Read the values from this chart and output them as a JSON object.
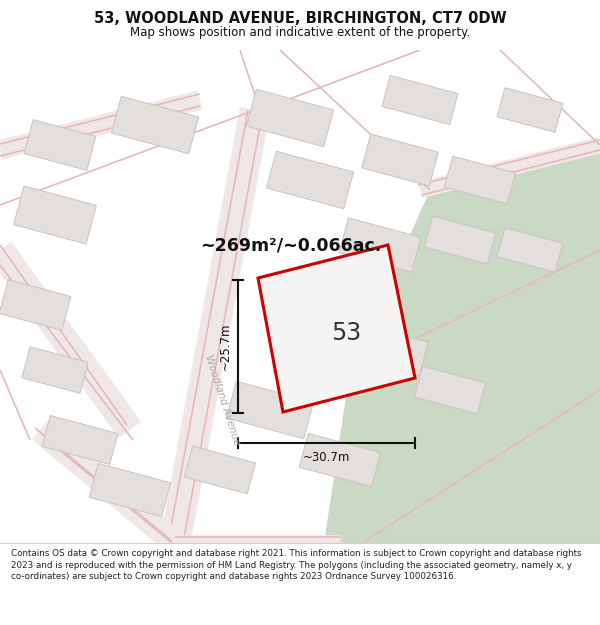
{
  "title": "53, WOODLAND AVENUE, BIRCHINGTON, CT7 0DW",
  "subtitle": "Map shows position and indicative extent of the property.",
  "footer": "Contains OS data © Crown copyright and database right 2021. This information is subject to Crown copyright and database rights 2023 and is reproduced with the permission of HM Land Registry. The polygons (including the associated geometry, namely x, y co-ordinates) are subject to Crown copyright and database rights 2023 Ordnance Survey 100026316.",
  "area_label": "~269m²/~0.066ac.",
  "width_label": "~30.7m",
  "height_label": "~25.7m",
  "street_label": "Woodland Avenue",
  "plot_number": "53",
  "map_bg": "#f0eeed",
  "green_area_color": "#cad9c3",
  "road_line_color": "#e8b8b8",
  "road_fill_color": "#f0e8e8",
  "block_fc": "#e2dfdd",
  "block_ec": "#c8c4c2",
  "plot_edge_color": "#cc0000",
  "plot_fill_color": "#f5f4f2",
  "dim_color": "#111111",
  "title_color": "#111111",
  "footer_color": "#222222",
  "street_label_color": "#aaaaaa"
}
